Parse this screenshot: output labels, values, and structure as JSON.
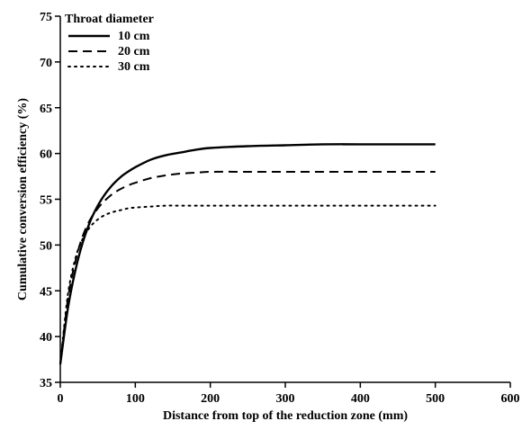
{
  "chart_data": {
    "type": "line",
    "title": "",
    "xlabel": "Distance from top of the reduction zone (mm)",
    "ylabel": "Cumulative conversion efficiency (%)",
    "xlim": [
      0,
      600
    ],
    "ylim": [
      35,
      75
    ],
    "xticks": [
      0,
      100,
      200,
      300,
      400,
      500,
      600
    ],
    "yticks": [
      35,
      40,
      45,
      50,
      55,
      60,
      65,
      70,
      75
    ],
    "grid": false,
    "legend": {
      "title": "Throat diameter",
      "position": "top-left"
    },
    "series": [
      {
        "name": "10 cm",
        "style": "solid",
        "x": [
          0,
          10,
          20,
          30,
          40,
          50,
          60,
          70,
          80,
          90,
          100,
          120,
          140,
          160,
          180,
          200,
          250,
          300,
          350,
          400,
          450,
          500
        ],
        "y": [
          37.0,
          43.0,
          47.2,
          50.3,
          52.6,
          54.3,
          55.6,
          56.6,
          57.4,
          58.0,
          58.5,
          59.3,
          59.8,
          60.1,
          60.4,
          60.6,
          60.8,
          60.9,
          61.0,
          61.0,
          61.0,
          61.0
        ]
      },
      {
        "name": "20 cm",
        "style": "dashed",
        "x": [
          0,
          10,
          20,
          30,
          40,
          50,
          60,
          70,
          80,
          90,
          100,
          120,
          140,
          160,
          180,
          200,
          250,
          300,
          350,
          400,
          450,
          500
        ],
        "y": [
          37.0,
          44.0,
          48.2,
          51.0,
          52.8,
          54.0,
          54.9,
          55.6,
          56.1,
          56.5,
          56.8,
          57.3,
          57.6,
          57.8,
          57.9,
          58.0,
          58.0,
          58.0,
          58.0,
          58.0,
          58.0,
          58.0
        ]
      },
      {
        "name": "30 cm",
        "style": "dotted",
        "x": [
          0,
          10,
          20,
          30,
          40,
          50,
          60,
          70,
          80,
          90,
          100,
          120,
          140,
          160,
          180,
          200,
          250,
          300,
          350,
          400,
          450,
          500
        ],
        "y": [
          37.0,
          44.5,
          48.5,
          50.7,
          52.0,
          52.8,
          53.3,
          53.6,
          53.8,
          54.0,
          54.1,
          54.2,
          54.3,
          54.3,
          54.3,
          54.3,
          54.3,
          54.3,
          54.3,
          54.3,
          54.3,
          54.3
        ]
      }
    ]
  }
}
